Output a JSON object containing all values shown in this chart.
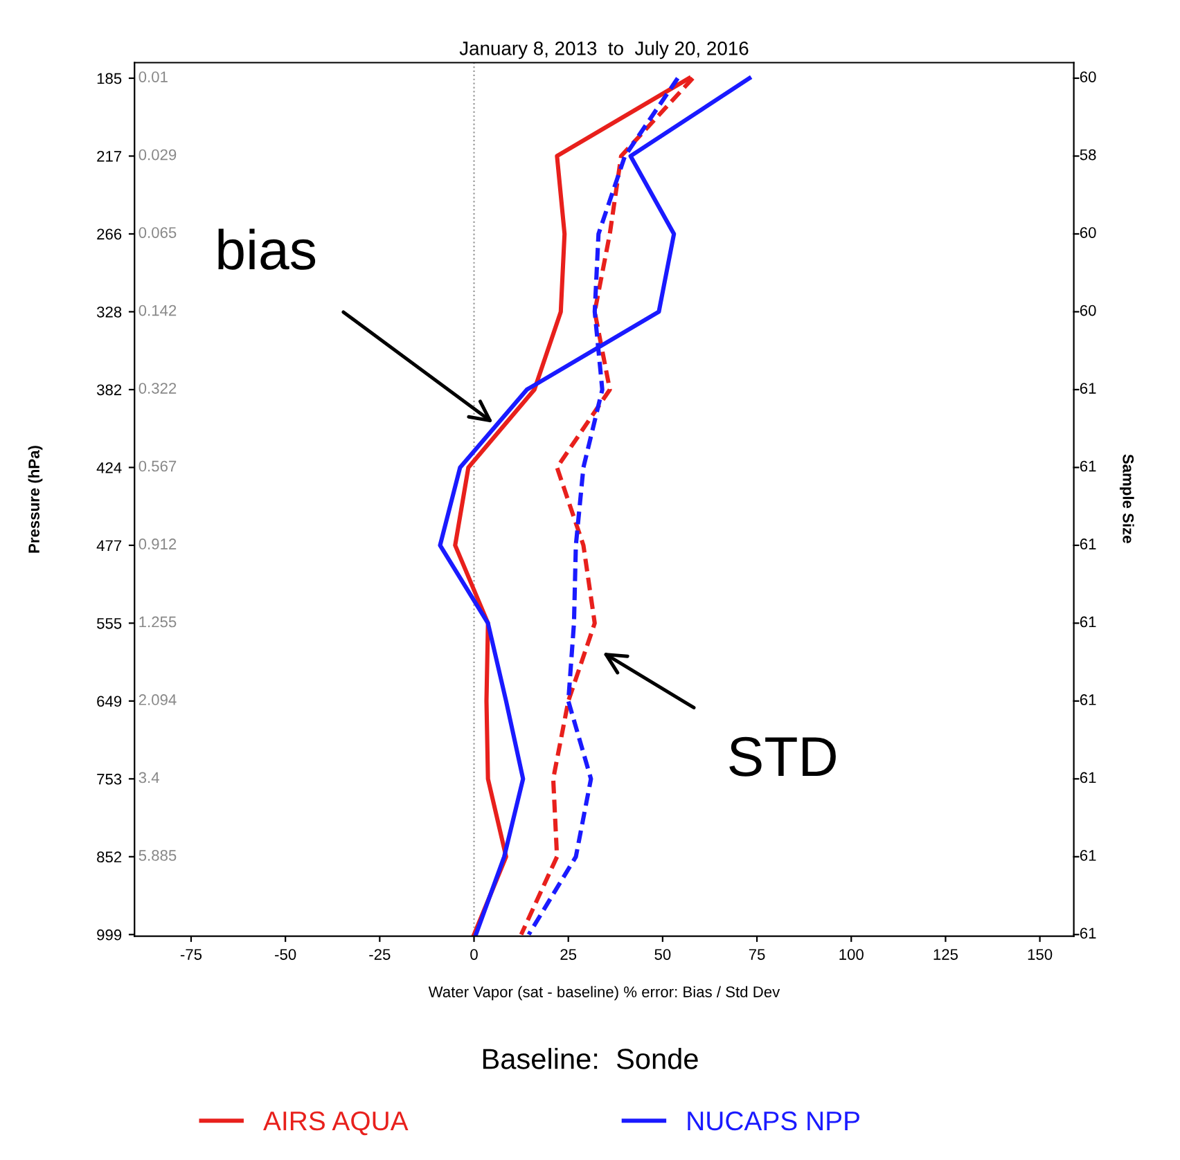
{
  "chart_data": {
    "type": "line",
    "orientation": "horizontal",
    "title": "January 8, 2013  to  July 20, 2016",
    "xlabel": "Water Vapor (sat - baseline) % error: Bias / Std Dev",
    "ylabel": "Pressure (hPa)",
    "y2label": "Sample Size",
    "xlim": [
      -90,
      159
    ],
    "xticks": [
      -75,
      -50,
      -25,
      0,
      25,
      50,
      75,
      100,
      125,
      150
    ],
    "categories": [
      "185",
      "217",
      "266",
      "328",
      "382",
      "424",
      "477",
      "555",
      "649",
      "753",
      "852",
      "999"
    ],
    "y2_categories": [
      "60",
      "58",
      "60",
      "60",
      "61",
      "61",
      "61",
      "61",
      "61",
      "61",
      "61",
      "61"
    ],
    "series": [
      {
        "name": "AIRS AQUA",
        "color": "#e8201c",
        "line_style": "solid",
        "values": [
          57,
          22,
          24,
          23,
          16,
          -1.5,
          -5,
          3.7,
          3.3,
          3.7,
          8.5,
          0
        ]
      },
      {
        "color": "#e8201c",
        "line_style": "dashed",
        "values": [
          58,
          39,
          36,
          32,
          36,
          22,
          29,
          32,
          25,
          21,
          22,
          12.5
        ]
      },
      {
        "name": "NUCAPS NPP",
        "color": "#1a1aff",
        "line_style": "solid",
        "values": [
          73,
          41.5,
          53,
          49,
          14,
          -3.7,
          -9,
          3.7,
          8.5,
          13,
          8,
          0.5
        ]
      },
      {
        "color": "#1a1aff",
        "line_style": "dashed",
        "values": [
          54,
          40,
          33,
          32,
          34,
          29,
          27,
          26.5,
          25,
          31,
          27,
          14.5
        ]
      }
    ],
    "ref_lines": [
      {
        "axis": "x",
        "value": 0,
        "color": "#999999",
        "line_style": "dotted"
      }
    ],
    "annotations": [
      "bias",
      "STD",
      "Baseline:  Sonde",
      "0.01",
      "0.029",
      "0.065",
      "0.142",
      "0.322",
      "0.567",
      "0.912",
      "1.255",
      "2.094",
      "3.4",
      "5.885"
    ],
    "legend": "bottom",
    "grid": false,
    "marker": "none"
  }
}
